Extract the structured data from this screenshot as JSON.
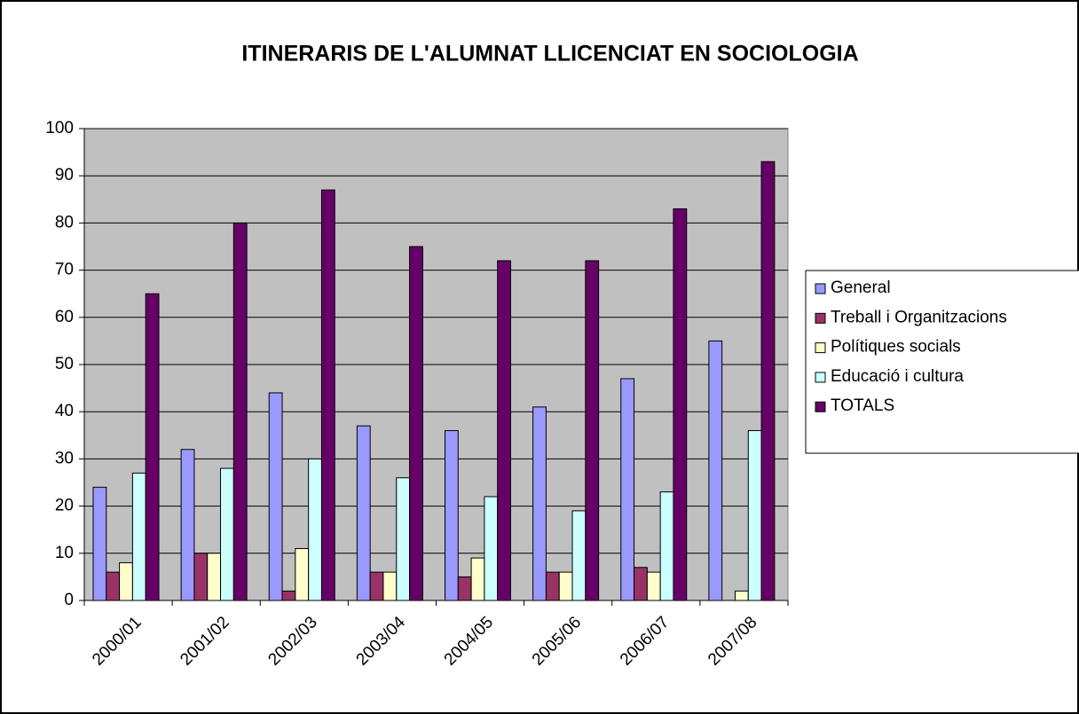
{
  "chart_data": {
    "type": "bar",
    "title": "ITINERARIS DE L'ALUMNAT LLICENCIAT EN SOCIOLOGIA",
    "categories": [
      "2000/01",
      "2001/02",
      "2002/03",
      "2003/04",
      "2004/05",
      "2005/06",
      "2006/07",
      "2007/08"
    ],
    "series": [
      {
        "name": "General",
        "color": "#9999ff",
        "values": [
          24,
          32,
          44,
          37,
          36,
          41,
          47,
          55
        ]
      },
      {
        "name": "Treball i Organitzacions",
        "color": "#993366",
        "values": [
          6,
          10,
          2,
          6,
          5,
          6,
          7,
          0
        ]
      },
      {
        "name": "Polítiques socials",
        "color": "#ffffcc",
        "values": [
          8,
          10,
          11,
          6,
          9,
          6,
          6,
          2
        ]
      },
      {
        "name": "Educació i cultura",
        "color": "#ccffff",
        "values": [
          27,
          28,
          30,
          26,
          22,
          19,
          23,
          36
        ]
      },
      {
        "name": "TOTALS",
        "color": "#660066",
        "values": [
          65,
          80,
          87,
          75,
          72,
          72,
          83,
          93
        ]
      }
    ],
    "ylim": [
      0,
      100
    ],
    "yticks": [
      0,
      10,
      20,
      30,
      40,
      50,
      60,
      70,
      80,
      90,
      100
    ],
    "grid": true,
    "legend": "right"
  }
}
